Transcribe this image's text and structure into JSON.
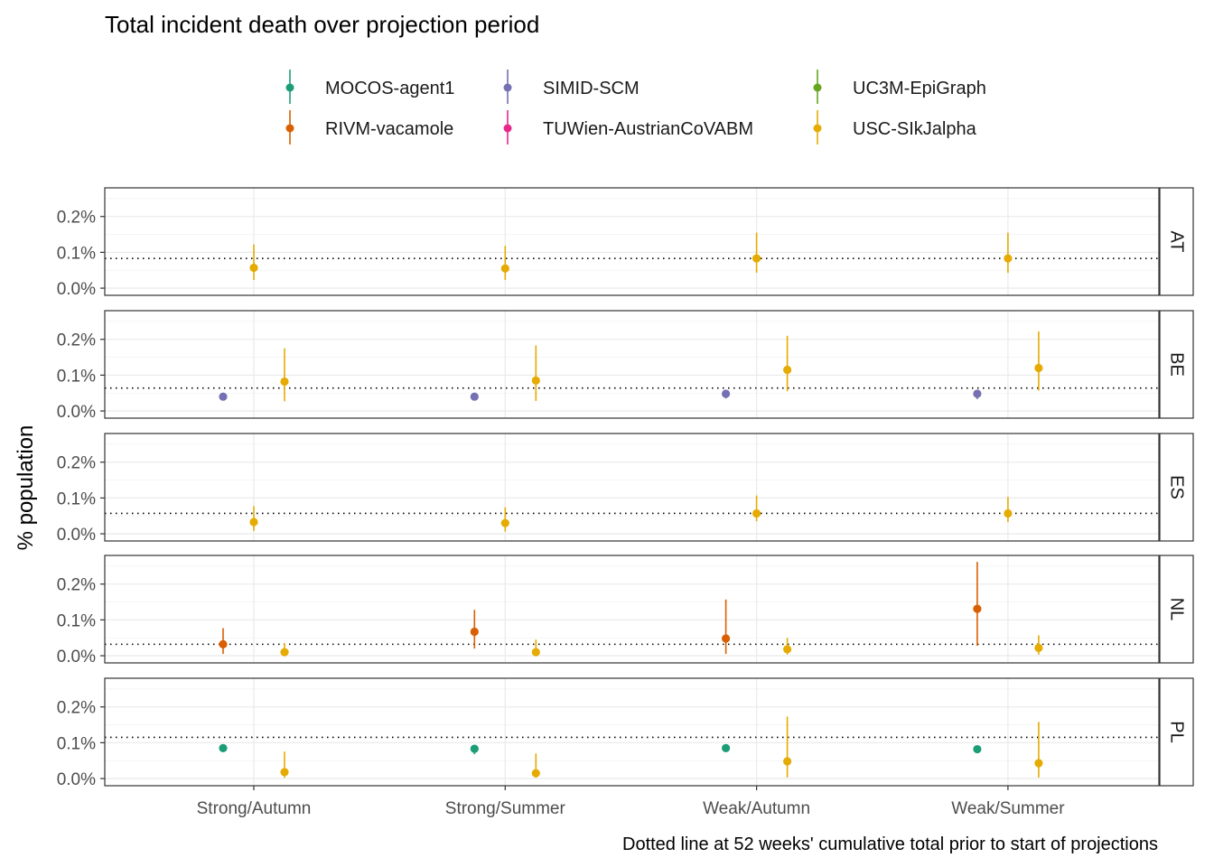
{
  "chart_data": {
    "type": "scatter",
    "title": "Total incident death over projection period",
    "ylabel": "% population",
    "caption": "Dotted line at 52 weeks' cumulative total prior to start of projections",
    "categories": [
      "Strong/Autumn",
      "Strong/Summer",
      "Weak/Autumn",
      "Weak/Summer"
    ],
    "ylim": [
      -0.0002,
      0.0028
    ],
    "yticks": [
      0.0,
      0.001,
      0.002
    ],
    "ytick_labels": [
      "0.0%",
      "0.1%",
      "0.2%"
    ],
    "legend": {
      "placement": "top",
      "entries": [
        "MOCOS-agent1",
        "SIMID-SCM",
        "UC3M-EpiGraph",
        "RIVM-vacamole",
        "TUWien-AustrianCoVABM",
        "USC-SIkJalpha"
      ]
    },
    "colors": {
      "MOCOS-agent1": "#1B9E77",
      "SIMID-SCM": "#7570B3",
      "UC3M-EpiGraph": "#66A61E",
      "RIVM-vacamole": "#D95F02",
      "TUWien-AustrianCoVABM": "#E7298A",
      "USC-SIkJalpha": "#E6AB02"
    },
    "grid": true,
    "panels": [
      {
        "label": "AT",
        "reference": 0.00083,
        "points": [
          {
            "model": "USC-SIkJalpha",
            "category": "Strong/Autumn",
            "slot": 1,
            "y": 0.00057,
            "lo": 0.00023,
            "hi": 0.00122
          },
          {
            "model": "USC-SIkJalpha",
            "category": "Strong/Summer",
            "slot": 1,
            "y": 0.00055,
            "lo": 0.00023,
            "hi": 0.00118
          },
          {
            "model": "USC-SIkJalpha",
            "category": "Weak/Autumn",
            "slot": 1,
            "y": 0.00083,
            "lo": 0.00043,
            "hi": 0.00155
          },
          {
            "model": "USC-SIkJalpha",
            "category": "Weak/Summer",
            "slot": 1,
            "y": 0.00083,
            "lo": 0.00043,
            "hi": 0.00155
          }
        ]
      },
      {
        "label": "BE",
        "reference": 0.00064,
        "points": [
          {
            "model": "SIMID-SCM",
            "category": "Strong/Autumn",
            "slot": 0,
            "y": 0.0004,
            "lo": 0.00035,
            "hi": 0.00045
          },
          {
            "model": "USC-SIkJalpha",
            "category": "Strong/Autumn",
            "slot": 2,
            "y": 0.00082,
            "lo": 0.00027,
            "hi": 0.00175
          },
          {
            "model": "SIMID-SCM",
            "category": "Strong/Summer",
            "slot": 0,
            "y": 0.0004,
            "lo": 0.00035,
            "hi": 0.00045
          },
          {
            "model": "USC-SIkJalpha",
            "category": "Strong/Summer",
            "slot": 2,
            "y": 0.00085,
            "lo": 0.00028,
            "hi": 0.00183
          },
          {
            "model": "SIMID-SCM",
            "category": "Weak/Autumn",
            "slot": 0,
            "y": 0.00048,
            "lo": 0.00035,
            "hi": 0.00057
          },
          {
            "model": "USC-SIkJalpha",
            "category": "Weak/Autumn",
            "slot": 2,
            "y": 0.00115,
            "lo": 0.00055,
            "hi": 0.0021
          },
          {
            "model": "SIMID-SCM",
            "category": "Weak/Summer",
            "slot": 0,
            "y": 0.00048,
            "lo": 0.00033,
            "hi": 0.00057
          },
          {
            "model": "USC-SIkJalpha",
            "category": "Weak/Summer",
            "slot": 2,
            "y": 0.0012,
            "lo": 0.00057,
            "hi": 0.00222
          }
        ]
      },
      {
        "label": "ES",
        "reference": 0.00057,
        "points": [
          {
            "model": "USC-SIkJalpha",
            "category": "Strong/Autumn",
            "slot": 1,
            "y": 0.00033,
            "lo": 8e-05,
            "hi": 0.00077
          },
          {
            "model": "USC-SIkJalpha",
            "category": "Strong/Summer",
            "slot": 1,
            "y": 0.0003,
            "lo": 6e-05,
            "hi": 0.00074
          },
          {
            "model": "USC-SIkJalpha",
            "category": "Weak/Autumn",
            "slot": 1,
            "y": 0.00057,
            "lo": 0.00035,
            "hi": 0.00107
          },
          {
            "model": "USC-SIkJalpha",
            "category": "Weak/Summer",
            "slot": 1,
            "y": 0.00057,
            "lo": 0.00033,
            "hi": 0.00103
          }
        ]
      },
      {
        "label": "NL",
        "reference": 0.00032,
        "points": [
          {
            "model": "RIVM-vacamole",
            "category": "Strong/Autumn",
            "slot": 0,
            "y": 0.00032,
            "lo": 5e-05,
            "hi": 0.00077
          },
          {
            "model": "USC-SIkJalpha",
            "category": "Strong/Autumn",
            "slot": 2,
            "y": 0.0001,
            "lo": 2e-05,
            "hi": 0.00035
          },
          {
            "model": "RIVM-vacamole",
            "category": "Strong/Summer",
            "slot": 0,
            "y": 0.00067,
            "lo": 0.0002,
            "hi": 0.00128
          },
          {
            "model": "USC-SIkJalpha",
            "category": "Strong/Summer",
            "slot": 2,
            "y": 0.0001,
            "lo": 2e-05,
            "hi": 0.00045
          },
          {
            "model": "RIVM-vacamole",
            "category": "Weak/Autumn",
            "slot": 0,
            "y": 0.00048,
            "lo": 5e-05,
            "hi": 0.00157
          },
          {
            "model": "USC-SIkJalpha",
            "category": "Weak/Autumn",
            "slot": 2,
            "y": 0.00018,
            "lo": 3e-05,
            "hi": 0.0005
          },
          {
            "model": "RIVM-vacamole",
            "category": "Weak/Summer",
            "slot": 0,
            "y": 0.00131,
            "lo": 0.00028,
            "hi": 0.00262
          },
          {
            "model": "USC-SIkJalpha",
            "category": "Weak/Summer",
            "slot": 2,
            "y": 0.00022,
            "lo": 3e-05,
            "hi": 0.00057
          }
        ]
      },
      {
        "label": "PL",
        "reference": 0.00115,
        "points": [
          {
            "model": "MOCOS-agent1",
            "category": "Strong/Autumn",
            "slot": 0,
            "y": 0.00085,
            "lo": 0.00078,
            "hi": 0.0009
          },
          {
            "model": "USC-SIkJalpha",
            "category": "Strong/Autumn",
            "slot": 2,
            "y": 0.00018,
            "lo": 2e-05,
            "hi": 0.00075
          },
          {
            "model": "MOCOS-agent1",
            "category": "Strong/Summer",
            "slot": 0,
            "y": 0.00083,
            "lo": 0.00068,
            "hi": 0.0009
          },
          {
            "model": "USC-SIkJalpha",
            "category": "Strong/Summer",
            "slot": 2,
            "y": 0.00015,
            "lo": 2e-05,
            "hi": 0.0007
          },
          {
            "model": "MOCOS-agent1",
            "category": "Weak/Autumn",
            "slot": 0,
            "y": 0.00085,
            "lo": 0.00078,
            "hi": 0.0009
          },
          {
            "model": "USC-SIkJalpha",
            "category": "Weak/Autumn",
            "slot": 2,
            "y": 0.00048,
            "lo": 3e-05,
            "hi": 0.00173
          },
          {
            "model": "MOCOS-agent1",
            "category": "Weak/Summer",
            "slot": 0,
            "y": 0.00082,
            "lo": 0.00075,
            "hi": 0.00088
          },
          {
            "model": "USC-SIkJalpha",
            "category": "Weak/Summer",
            "slot": 2,
            "y": 0.00043,
            "lo": 3e-05,
            "hi": 0.00158
          }
        ]
      }
    ]
  }
}
